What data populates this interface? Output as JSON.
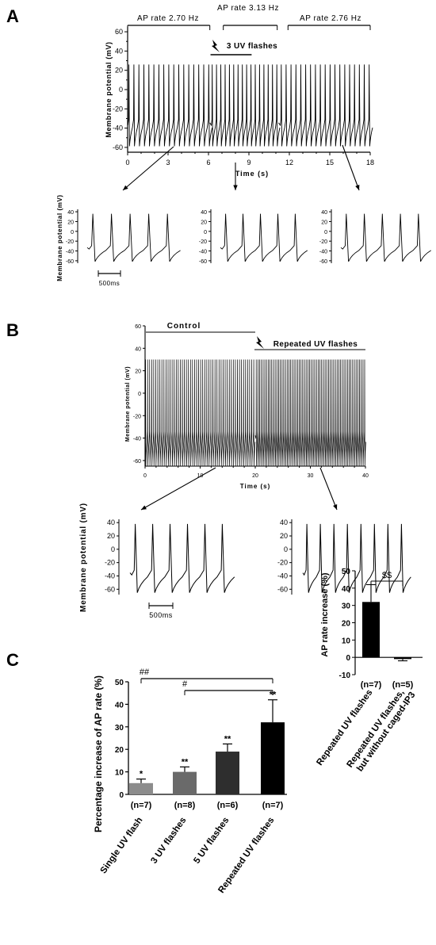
{
  "panels": {
    "a": "A",
    "b": "B",
    "c": "C"
  },
  "chart_data": [
    {
      "id": "A",
      "type": "line",
      "ylabel": "Membrane potential (mV)",
      "xlabel": "Time (s)",
      "xlim": [
        0,
        18
      ],
      "ylim": [
        -65,
        65
      ],
      "xticks": [
        "0",
        "3",
        "6",
        "9",
        "12",
        "15",
        "18"
      ],
      "yticks": [
        "60",
        "40",
        "20",
        "0",
        "-20",
        "-40",
        "-60"
      ],
      "trace": {
        "peak": 26,
        "trough": -58,
        "segments": [
          {
            "from": 0,
            "to": 6.1,
            "rate_hz": 2.7
          },
          {
            "from": 6.1,
            "to": 11.2,
            "rate_hz": 3.13
          },
          {
            "from": 11.2,
            "to": 18,
            "rate_hz": 2.76
          }
        ]
      },
      "annotations": {
        "rate1": "AP rate 2.70 Hz",
        "rate2": "AP rate 3.13 Hz",
        "rate3": "AP rate 2.76 Hz",
        "stim": "3 UV flashes"
      }
    },
    {
      "id": "A-insets",
      "type": "line",
      "ylabel": "Membrane potential (mV)",
      "yticks": [
        "40",
        "20",
        "0",
        "-20",
        "-40",
        "-60"
      ],
      "ylim": [
        -65,
        45
      ],
      "scalebar": "500ms",
      "insets": [
        {
          "spikes": 5
        },
        {
          "spikes": 5
        },
        {
          "spikes": 5
        }
      ]
    },
    {
      "id": "B",
      "type": "line",
      "ylabel": "Membrane potential (mV)",
      "xlabel": "Time (s)",
      "xlim": [
        0,
        40
      ],
      "ylim": [
        -65,
        60
      ],
      "xticks": [
        "0",
        "10",
        "20",
        "30",
        "40"
      ],
      "yticks": [
        "60",
        "40",
        "20",
        "0",
        "-20",
        "-40",
        "-60"
      ],
      "trace": {
        "peak": 30,
        "trough": -64,
        "rate_hz_control": 2.7,
        "rate_hz_uv": 3.2,
        "uv_start": 20
      },
      "annotations": {
        "control": "Control",
        "stim": "Repeated UV flashes"
      }
    },
    {
      "id": "B-insets",
      "type": "line",
      "ylabel": "Membrane potential (mV)",
      "yticks": [
        "40",
        "20",
        "0",
        "-20",
        "-40",
        "-60"
      ],
      "ylim": [
        -68,
        45
      ],
      "scalebar": "500ms",
      "insets": [
        {
          "spikes": 6
        },
        {
          "spikes": 8
        }
      ]
    },
    {
      "id": "C-main",
      "type": "bar",
      "ylabel": "Percentage increase of AP rate (%)",
      "ylim": [
        0,
        50
      ],
      "yticks": [
        "0",
        "10",
        "20",
        "30",
        "40",
        "50"
      ],
      "categories": [
        "Single UV flash",
        "3 UV flashes",
        "5 UV flashes",
        "Repeated UV flashes"
      ],
      "values": [
        5,
        10,
        19,
        32
      ],
      "errors": [
        1.8,
        2.2,
        3.4,
        10
      ],
      "colors": [
        "#8c8c8c",
        "#6a6a6a",
        "#2e2e2e",
        "#000000"
      ],
      "n": [
        "(n=7)",
        "(n=8)",
        "(n=6)",
        "(n=7)"
      ],
      "marks": [
        "*",
        "**",
        "**",
        "**"
      ],
      "brackets": [
        {
          "from": 0,
          "to": 3,
          "label": "##"
        },
        {
          "from": 1,
          "to": 3,
          "label": "#"
        }
      ]
    },
    {
      "id": "C-inset",
      "type": "bar",
      "ylabel": "AP rate increase (%)",
      "ylim": [
        -10,
        50
      ],
      "yticks": [
        "50",
        "40",
        "30",
        "20",
        "10",
        "0",
        "-10"
      ],
      "categories": [
        "Repeated UV flashes",
        "Repeated UV flashes, but without caged-IP3"
      ],
      "values": [
        32,
        -1
      ],
      "errors": [
        10,
        1
      ],
      "n": [
        "(n=7)",
        "(n=5)"
      ],
      "bracket_label": "$$"
    }
  ]
}
